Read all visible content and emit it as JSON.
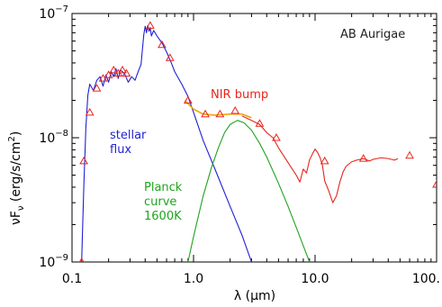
{
  "chart_data": {
    "type": "line",
    "title": "",
    "xlabel": "λ (μm)",
    "ylabel": "νF",
    "ylabel_sub": "ν",
    "ylabel_units": " (erg/s/cm",
    "ylabel_sup": "2",
    "ylabel_close": ")",
    "x_scale": "log",
    "y_scale": "log",
    "xlim": [
      0.1,
      100
    ],
    "ylim": [
      1e-09,
      1e-07
    ],
    "x_ticks": [
      {
        "value": 0.1,
        "label": "0.1"
      },
      {
        "value": 1,
        "label": "1.0"
      },
      {
        "value": 10,
        "label": "10.0"
      },
      {
        "value": 100,
        "label": "100."
      }
    ],
    "y_ticks": [
      {
        "value": 1e-09,
        "base": "10",
        "exp": "−9"
      },
      {
        "value": 1e-08,
        "base": "10",
        "exp": "−8"
      },
      {
        "value": 1e-07,
        "base": "10",
        "exp": "−7"
      }
    ],
    "annotations": {
      "object": "AB Aurigae",
      "nir_bump": "NIR bump",
      "stellar": [
        "stellar",
        "flux"
      ],
      "planck": [
        "Planck",
        "curve",
        "1600K"
      ]
    },
    "colors": {
      "stellar": "#1f1fd6",
      "ir": "#e8241c",
      "planck": "#1fa31f",
      "model": "#f2a10f",
      "points": "#e8241c",
      "axes": "#000000"
    },
    "series": [
      {
        "key": "stellar",
        "points": [
          [
            0.12,
            1e-09
          ],
          [
            0.125,
            4e-09
          ],
          [
            0.13,
            1.2e-08
          ],
          [
            0.135,
            2.2e-08
          ],
          [
            0.14,
            2.7e-08
          ],
          [
            0.15,
            2.4e-08
          ],
          [
            0.16,
            2.9e-08
          ],
          [
            0.17,
            3.1e-08
          ],
          [
            0.18,
            2.6e-08
          ],
          [
            0.19,
            3.2e-08
          ],
          [
            0.2,
            2.8e-08
          ],
          [
            0.21,
            3.4e-08
          ],
          [
            0.22,
            3.1e-08
          ],
          [
            0.23,
            3.6e-08
          ],
          [
            0.24,
            3e-08
          ],
          [
            0.25,
            3.5e-08
          ],
          [
            0.27,
            3.3e-08
          ],
          [
            0.29,
            2.8e-08
          ],
          [
            0.31,
            3.1e-08
          ],
          [
            0.33,
            2.9e-08
          ],
          [
            0.35,
            3.4e-08
          ],
          [
            0.37,
            3.9e-08
          ],
          [
            0.38,
            5.2e-08
          ],
          [
            0.39,
            6.8e-08
          ],
          [
            0.4,
            7.9e-08
          ],
          [
            0.41,
            7e-08
          ],
          [
            0.42,
            8e-08
          ],
          [
            0.43,
            7.2e-08
          ],
          [
            0.44,
            7.7e-08
          ],
          [
            0.45,
            6.6e-08
          ],
          [
            0.47,
            7.3e-08
          ],
          [
            0.5,
            6.6e-08
          ],
          [
            0.55,
            5.8e-08
          ],
          [
            0.6,
            4.9e-08
          ],
          [
            0.65,
            4.1e-08
          ],
          [
            0.7,
            3.4e-08
          ],
          [
            0.8,
            2.7e-08
          ],
          [
            0.9,
            2.15e-08
          ],
          [
            1.0,
            1.6e-08
          ],
          [
            1.2,
            9.5e-09
          ],
          [
            1.5,
            5.6e-09
          ],
          [
            2.0,
            2.8e-09
          ],
          [
            2.5,
            1.65e-09
          ],
          [
            3.0,
            1e-09
          ]
        ]
      },
      {
        "key": "ir",
        "points": [
          [
            2.5,
            1.5e-08
          ],
          [
            3.0,
            1.38e-08
          ],
          [
            3.5,
            1.28e-08
          ],
          [
            4.0,
            1.1e-08
          ],
          [
            4.5,
            1e-08
          ],
          [
            5.0,
            8.3e-09
          ],
          [
            6.0,
            6.3e-09
          ],
          [
            7.0,
            5e-09
          ],
          [
            7.5,
            4.4e-09
          ],
          [
            8.0,
            5.6e-09
          ],
          [
            8.5,
            5.2e-09
          ],
          [
            9.0,
            6.6e-09
          ],
          [
            9.5,
            7.4e-09
          ],
          [
            10.0,
            8.1e-09
          ],
          [
            10.5,
            7.6e-09
          ],
          [
            11.0,
            6.9e-09
          ],
          [
            11.5,
            6e-09
          ],
          [
            12.0,
            4.5e-09
          ],
          [
            13.0,
            3.7e-09
          ],
          [
            14.0,
            3e-09
          ],
          [
            15.0,
            3.4e-09
          ],
          [
            16.0,
            4.4e-09
          ],
          [
            17.0,
            5.3e-09
          ],
          [
            18.0,
            5.9e-09
          ],
          [
            20.0,
            6.4e-09
          ],
          [
            22.0,
            6.6e-09
          ],
          [
            25.0,
            6.8e-09
          ],
          [
            28.0,
            6.5e-09
          ],
          [
            30.0,
            6.7e-09
          ],
          [
            35.0,
            6.9e-09
          ],
          [
            40.0,
            6.8e-09
          ],
          [
            45.0,
            6.6e-09
          ],
          [
            48.0,
            6.8e-09
          ]
        ]
      },
      {
        "key": "planck",
        "points": [
          [
            0.85,
            8e-10
          ],
          [
            0.9,
            1e-09
          ],
          [
            1.0,
            1.6e-09
          ],
          [
            1.2,
            3.4e-09
          ],
          [
            1.4,
            5.7e-09
          ],
          [
            1.6,
            8.3e-09
          ],
          [
            1.8,
            1.1e-08
          ],
          [
            2.0,
            1.28e-08
          ],
          [
            2.3,
            1.38e-08
          ],
          [
            2.6,
            1.32e-08
          ],
          [
            3.0,
            1.15e-08
          ],
          [
            3.5,
            9e-09
          ],
          [
            4.0,
            7e-09
          ],
          [
            5.0,
            4.3e-09
          ],
          [
            6.0,
            2.8e-09
          ],
          [
            7.0,
            1.9e-09
          ],
          [
            8.0,
            1.35e-09
          ],
          [
            9.0,
            1e-09
          ],
          [
            10.0,
            8e-10
          ]
        ]
      },
      {
        "key": "model",
        "points": [
          [
            0.85,
            2e-08
          ],
          [
            0.9,
            1.88e-08
          ],
          [
            1.0,
            1.7e-08
          ],
          [
            1.2,
            1.55e-08
          ],
          [
            1.5,
            1.52e-08
          ],
          [
            2.0,
            1.55e-08
          ],
          [
            2.5,
            1.55e-08
          ],
          [
            3.0,
            1.45e-08
          ]
        ]
      }
    ],
    "photometry": [
      [
        0.125,
        6.5e-09
      ],
      [
        0.14,
        1.6e-08
      ],
      [
        0.16,
        2.5e-08
      ],
      [
        0.18,
        3e-08
      ],
      [
        0.2,
        3.2e-08
      ],
      [
        0.22,
        3.5e-08
      ],
      [
        0.24,
        3.3e-08
      ],
      [
        0.26,
        3.5e-08
      ],
      [
        0.28,
        3.3e-08
      ],
      [
        0.44,
        8e-08
      ],
      [
        0.55,
        5.6e-08
      ],
      [
        0.64,
        4.4e-08
      ],
      [
        0.9,
        2e-08
      ],
      [
        1.25,
        1.55e-08
      ],
      [
        1.65,
        1.55e-08
      ],
      [
        2.2,
        1.65e-08
      ],
      [
        3.5,
        1.3e-08
      ],
      [
        4.8,
        1e-08
      ],
      [
        12.0,
        6.5e-09
      ],
      [
        25.0,
        6.8e-09
      ],
      [
        60.0,
        7.2e-09
      ],
      [
        100.0,
        4.2e-09
      ],
      [
        0.12,
        1e-09
      ]
    ]
  }
}
